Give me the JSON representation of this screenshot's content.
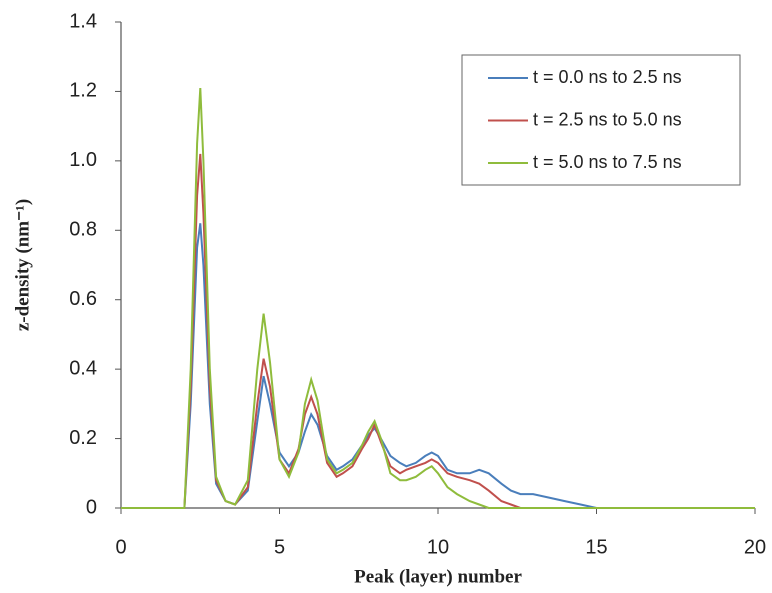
{
  "chart_data": {
    "type": "line",
    "xlabel": "Peak (layer) number",
    "ylabel": "z-density (nm⁻¹)",
    "x": [
      0,
      1,
      2,
      2.2,
      2.4,
      2.5,
      2.6,
      2.8,
      3,
      3.3,
      3.6,
      4,
      4.3,
      4.5,
      4.7,
      5,
      5.3,
      5.6,
      5.8,
      6,
      6.2,
      6.5,
      6.8,
      7,
      7.3,
      7.6,
      7.8,
      8,
      8.2,
      8.5,
      8.8,
      9,
      9.3,
      9.6,
      9.8,
      10,
      10.3,
      10.6,
      11,
      11.3,
      11.6,
      12,
      12.3,
      12.6,
      13,
      13.5,
      14,
      14.5,
      15,
      16,
      20
    ],
    "series": [
      {
        "name": "t = 0.0 ns to 2.5 ns",
        "color": "#4a7ebb",
        "values": [
          0,
          0,
          0,
          0.3,
          0.75,
          0.82,
          0.7,
          0.3,
          0.07,
          0.02,
          0.01,
          0.05,
          0.25,
          0.38,
          0.3,
          0.16,
          0.12,
          0.16,
          0.22,
          0.27,
          0.24,
          0.15,
          0.11,
          0.12,
          0.14,
          0.18,
          0.21,
          0.23,
          0.2,
          0.15,
          0.13,
          0.12,
          0.13,
          0.15,
          0.16,
          0.15,
          0.11,
          0.1,
          0.1,
          0.11,
          0.1,
          0.07,
          0.05,
          0.04,
          0.04,
          0.03,
          0.02,
          0.01,
          0,
          0,
          0
        ]
      },
      {
        "name": "t = 2.5 ns to 5.0 ns",
        "color": "#c0504d",
        "values": [
          0,
          0,
          0,
          0.35,
          0.9,
          1.02,
          0.85,
          0.35,
          0.08,
          0.02,
          0.01,
          0.06,
          0.3,
          0.43,
          0.35,
          0.14,
          0.1,
          0.17,
          0.27,
          0.32,
          0.27,
          0.13,
          0.09,
          0.1,
          0.12,
          0.17,
          0.2,
          0.24,
          0.19,
          0.12,
          0.1,
          0.11,
          0.12,
          0.13,
          0.14,
          0.13,
          0.1,
          0.09,
          0.08,
          0.07,
          0.05,
          0.02,
          0.01,
          0,
          0,
          0,
          0,
          0,
          0,
          0,
          0
        ]
      },
      {
        "name": "t = 5.0 ns to 7.5 ns",
        "color": "#8fbc3c",
        "values": [
          0,
          0,
          0,
          0.4,
          1.05,
          1.21,
          1.0,
          0.4,
          0.09,
          0.02,
          0.01,
          0.08,
          0.4,
          0.56,
          0.42,
          0.14,
          0.09,
          0.16,
          0.3,
          0.37,
          0.31,
          0.14,
          0.1,
          0.11,
          0.13,
          0.18,
          0.22,
          0.25,
          0.2,
          0.1,
          0.08,
          0.08,
          0.09,
          0.11,
          0.12,
          0.1,
          0.06,
          0.04,
          0.02,
          0.01,
          0,
          0,
          0,
          0,
          0,
          0,
          0,
          0,
          0,
          0,
          0
        ]
      }
    ],
    "xlim": [
      0,
      20
    ],
    "xticks": [
      0,
      5,
      10,
      15,
      20
    ],
    "ylim": [
      0,
      1.4
    ],
    "yticks": [
      0,
      0.2,
      0.4,
      0.6,
      0.8,
      {
        "value": 1,
        "label": "1.0"
      },
      1.2,
      1.4
    ],
    "legend": "upper right"
  }
}
